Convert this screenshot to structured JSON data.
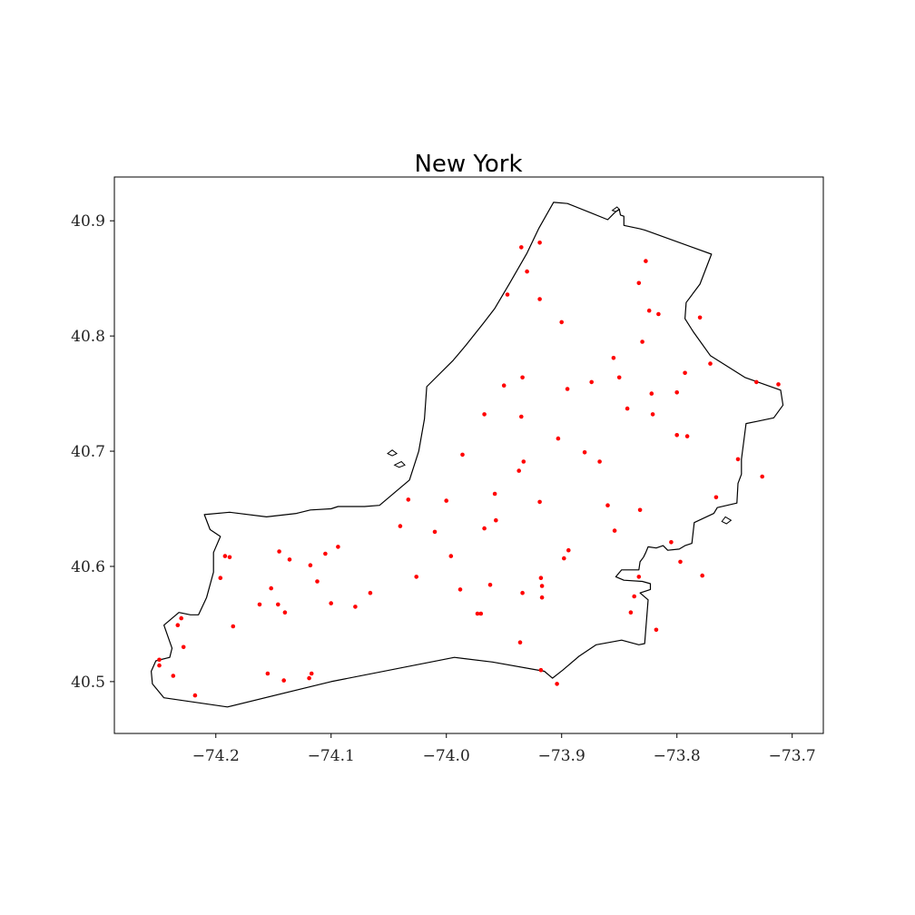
{
  "chart_data": {
    "type": "scatter",
    "title": "New York",
    "xlabel": "",
    "ylabel": "",
    "xlim": [
      -74.288,
      -73.673
    ],
    "ylim": [
      40.455,
      40.938
    ],
    "xticks": [
      -74.2,
      -74.1,
      -74.0,
      -73.9,
      -73.8,
      -73.7
    ],
    "xtick_labels": [
      "−74.2",
      "−74.1",
      "−74.0",
      "−73.9",
      "−73.8",
      "−73.7"
    ],
    "yticks": [
      40.5,
      40.6,
      40.7,
      40.8,
      40.9
    ],
    "ytick_labels": [
      "40.5",
      "40.6",
      "40.7",
      "40.8",
      "40.9"
    ],
    "grid": false,
    "point_color": "#ff0000",
    "boundary_color": "#000000",
    "boundary": [
      [
        -73.907,
        40.916
      ],
      [
        -73.895,
        40.915
      ],
      [
        -73.875,
        40.907
      ],
      [
        -73.86,
        40.901
      ],
      [
        -73.854,
        40.907
      ],
      [
        -73.85,
        40.91
      ],
      [
        -73.849,
        40.905
      ],
      [
        -73.846,
        40.904
      ],
      [
        -73.846,
        40.896
      ],
      [
        -73.832,
        40.893
      ],
      [
        -73.828,
        40.892
      ],
      [
        -73.77,
        40.871
      ],
      [
        -73.78,
        40.845
      ],
      [
        -73.792,
        40.829
      ],
      [
        -73.793,
        40.815
      ],
      [
        -73.786,
        40.804
      ],
      [
        -73.771,
        40.783
      ],
      [
        -73.741,
        40.764
      ],
      [
        -73.71,
        40.753
      ],
      [
        -73.708,
        40.74
      ],
      [
        -73.716,
        40.729
      ],
      [
        -73.73,
        40.726
      ],
      [
        -73.74,
        40.724
      ],
      [
        -73.744,
        40.693
      ],
      [
        -73.744,
        40.68
      ],
      [
        -73.747,
        40.672
      ],
      [
        -73.748,
        40.655
      ],
      [
        -73.765,
        40.651
      ],
      [
        -73.768,
        40.646
      ],
      [
        -73.785,
        40.638
      ],
      [
        -73.787,
        40.62
      ],
      [
        -73.793,
        40.618
      ],
      [
        -73.798,
        40.615
      ],
      [
        -73.808,
        40.614
      ],
      [
        -73.812,
        40.618
      ],
      [
        -73.818,
        40.616
      ],
      [
        -73.825,
        40.617
      ],
      [
        -73.827,
        40.612
      ],
      [
        -73.829,
        40.608
      ],
      [
        -73.832,
        40.604
      ],
      [
        -73.833,
        40.597
      ],
      [
        -73.848,
        40.597
      ],
      [
        -73.853,
        40.591
      ],
      [
        -73.846,
        40.588
      ],
      [
        -73.83,
        40.587
      ],
      [
        -73.823,
        40.585
      ],
      [
        -73.823,
        40.58
      ],
      [
        -73.832,
        40.577
      ],
      [
        -73.825,
        40.571
      ],
      [
        -73.828,
        40.533
      ],
      [
        -73.833,
        40.532
      ],
      [
        -73.848,
        40.536
      ],
      [
        -73.87,
        40.532
      ],
      [
        -73.885,
        40.522
      ],
      [
        -73.899,
        40.51
      ],
      [
        -73.908,
        40.503
      ],
      [
        -73.915,
        40.509
      ],
      [
        -73.96,
        40.517
      ],
      [
        -73.993,
        40.521
      ],
      [
        -74.1,
        40.5
      ],
      [
        -74.19,
        40.478
      ],
      [
        -74.245,
        40.486
      ],
      [
        -74.255,
        40.498
      ],
      [
        -74.256,
        40.509
      ],
      [
        -74.252,
        40.518
      ],
      [
        -74.24,
        40.521
      ],
      [
        -74.238,
        40.529
      ],
      [
        -74.245,
        40.549
      ],
      [
        -74.232,
        40.56
      ],
      [
        -74.222,
        40.558
      ],
      [
        -74.215,
        40.558
      ],
      [
        -74.208,
        40.573
      ],
      [
        -74.202,
        40.595
      ],
      [
        -74.202,
        40.612
      ],
      [
        -74.196,
        40.626
      ],
      [
        -74.205,
        40.632
      ],
      [
        -74.21,
        40.645
      ],
      [
        -74.188,
        40.647
      ],
      [
        -74.156,
        40.643
      ],
      [
        -74.13,
        40.646
      ],
      [
        -74.118,
        40.649
      ],
      [
        -74.1,
        40.65
      ],
      [
        -74.094,
        40.652
      ],
      [
        -74.071,
        40.652
      ],
      [
        -74.058,
        40.653
      ],
      [
        -74.032,
        40.675
      ],
      [
        -74.024,
        40.7
      ],
      [
        -74.019,
        40.728
      ],
      [
        -74.017,
        40.756
      ],
      [
        -73.994,
        40.779
      ],
      [
        -73.983,
        40.792
      ],
      [
        -73.968,
        40.811
      ],
      [
        -73.958,
        40.824
      ],
      [
        -73.945,
        40.846
      ],
      [
        -73.93,
        40.872
      ],
      [
        -73.92,
        40.893
      ],
      [
        -73.907,
        40.916
      ]
    ],
    "small_islands": [
      [
        [
          -74.051,
          40.698
        ],
        [
          -74.047,
          40.701
        ],
        [
          -74.043,
          40.698
        ],
        [
          -74.047,
          40.696
        ],
        [
          -74.051,
          40.698
        ]
      ],
      [
        [
          -74.045,
          40.688
        ],
        [
          -74.039,
          40.691
        ],
        [
          -74.036,
          40.688
        ],
        [
          -74.041,
          40.686
        ],
        [
          -74.045,
          40.688
        ]
      ],
      [
        [
          -73.761,
          40.639
        ],
        [
          -73.758,
          40.643
        ],
        [
          -73.753,
          40.64
        ],
        [
          -73.757,
          40.637
        ],
        [
          -73.761,
          40.639
        ]
      ],
      [
        [
          -73.856,
          40.909
        ],
        [
          -73.852,
          40.912
        ],
        [
          -73.85,
          40.91
        ],
        [
          -73.853,
          40.908
        ],
        [
          -73.856,
          40.909
        ]
      ]
    ],
    "points": [
      [
        -73.919,
        40.881
      ],
      [
        -73.935,
        40.877
      ],
      [
        -73.93,
        40.856
      ],
      [
        -73.947,
        40.836
      ],
      [
        -73.919,
        40.832
      ],
      [
        -73.9,
        40.812
      ],
      [
        -73.827,
        40.865
      ],
      [
        -73.833,
        40.846
      ],
      [
        -73.824,
        40.822
      ],
      [
        -73.816,
        40.819
      ],
      [
        -73.78,
        40.816
      ],
      [
        -73.83,
        40.795
      ],
      [
        -73.855,
        40.781
      ],
      [
        -73.85,
        40.764
      ],
      [
        -73.793,
        40.768
      ],
      [
        -73.771,
        40.776
      ],
      [
        -73.8,
        40.751
      ],
      [
        -73.822,
        40.75
      ],
      [
        -73.843,
        40.737
      ],
      [
        -73.821,
        40.732
      ],
      [
        -73.874,
        40.76
      ],
      [
        -73.895,
        40.754
      ],
      [
        -73.934,
        40.764
      ],
      [
        -73.95,
        40.757
      ],
      [
        -73.967,
        40.732
      ],
      [
        -73.935,
        40.73
      ],
      [
        -73.903,
        40.711
      ],
      [
        -73.88,
        40.699
      ],
      [
        -73.867,
        40.691
      ],
      [
        -73.8,
        40.714
      ],
      [
        -73.791,
        40.713
      ],
      [
        -73.731,
        40.76
      ],
      [
        -73.712,
        40.758
      ],
      [
        -73.726,
        40.678
      ],
      [
        -73.747,
        40.693
      ],
      [
        -73.766,
        40.66
      ],
      [
        -73.986,
        40.697
      ],
      [
        -73.937,
        40.683
      ],
      [
        -73.933,
        40.691
      ],
      [
        -73.958,
        40.663
      ],
      [
        -73.919,
        40.656
      ],
      [
        -73.86,
        40.653
      ],
      [
        -73.832,
        40.649
      ],
      [
        -73.854,
        40.631
      ],
      [
        -73.967,
        40.633
      ],
      [
        -73.957,
        40.64
      ],
      [
        -74.033,
        40.658
      ],
      [
        -74.0,
        40.657
      ],
      [
        -74.04,
        40.635
      ],
      [
        -74.01,
        40.63
      ],
      [
        -73.996,
        40.609
      ],
      [
        -73.894,
        40.614
      ],
      [
        -73.898,
        40.607
      ],
      [
        -73.805,
        40.621
      ],
      [
        -73.797,
        40.604
      ],
      [
        -73.778,
        40.592
      ],
      [
        -73.833,
        40.591
      ],
      [
        -73.918,
        40.59
      ],
      [
        -73.917,
        40.583
      ],
      [
        -73.917,
        40.573
      ],
      [
        -73.934,
        40.577
      ],
      [
        -73.962,
        40.584
      ],
      [
        -73.988,
        40.58
      ],
      [
        -73.973,
        40.559
      ],
      [
        -73.97,
        40.559
      ],
      [
        -73.837,
        40.574
      ],
      [
        -73.84,
        40.56
      ],
      [
        -73.818,
        40.545
      ],
      [
        -74.026,
        40.591
      ],
      [
        -74.094,
        40.617
      ],
      [
        -74.105,
        40.611
      ],
      [
        -74.118,
        40.601
      ],
      [
        -74.112,
        40.587
      ],
      [
        -74.136,
        40.606
      ],
      [
        -74.145,
        40.613
      ],
      [
        -74.192,
        40.609
      ],
      [
        -74.188,
        40.608
      ],
      [
        -74.196,
        40.59
      ],
      [
        -74.152,
        40.581
      ],
      [
        -74.146,
        40.567
      ],
      [
        -74.14,
        40.56
      ],
      [
        -74.162,
        40.567
      ],
      [
        -74.1,
        40.568
      ],
      [
        -74.079,
        40.565
      ],
      [
        -74.066,
        40.577
      ],
      [
        -74.185,
        40.548
      ],
      [
        -74.23,
        40.555
      ],
      [
        -74.233,
        40.549
      ],
      [
        -74.228,
        40.53
      ],
      [
        -74.249,
        40.519
      ],
      [
        -74.249,
        40.514
      ],
      [
        -74.237,
        40.505
      ],
      [
        -74.155,
        40.507
      ],
      [
        -74.141,
        40.501
      ],
      [
        -74.117,
        40.507
      ],
      [
        -74.119,
        40.503
      ],
      [
        -74.218,
        40.488
      ],
      [
        -73.936,
        40.534
      ],
      [
        -73.918,
        40.51
      ],
      [
        -73.904,
        40.498
      ]
    ]
  }
}
